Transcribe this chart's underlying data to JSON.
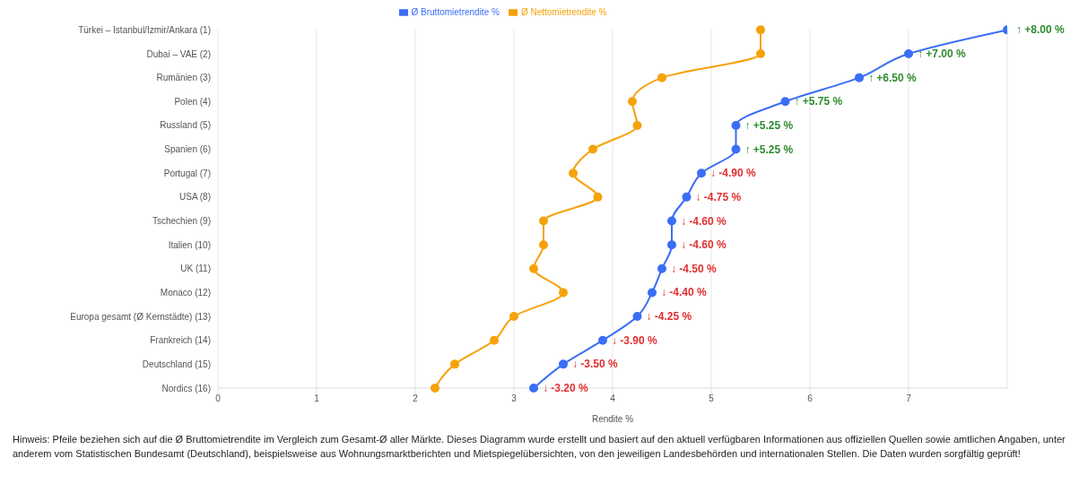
{
  "chart_data": {
    "type": "line",
    "orientation": "horizontal",
    "xlabel": "Rendite %",
    "categories": [
      "Türkei – Istanbul/Izmir/Ankara (1)",
      "Dubai – VAE (2)",
      "Rumänien (3)",
      "Polen (4)",
      "Russland (5)",
      "Spanien (6)",
      "Portugal (7)",
      "USA (8)",
      "Tschechien (9)",
      "Italien (10)",
      "UK (11)",
      "Monaco (12)",
      "Europa gesamt (Ø Kernstädte) (13)",
      "Frankreich (14)",
      "Deutschland (15)",
      "Nordics (16)"
    ],
    "series": [
      {
        "name": "Ø Bruttomietrendite %",
        "color": "#3b6ef6",
        "values": [
          8,
          7,
          6.5,
          5.75,
          5.25,
          5.25,
          4.9,
          4.75,
          4.6,
          4.6,
          4.5,
          4.4,
          4.25,
          3.9,
          3.5,
          3.2
        ]
      },
      {
        "name": "Ø Nettomietrendite %",
        "color": "#f5a20a",
        "values": [
          5.5,
          5.5,
          4.5,
          4.2,
          4.25,
          3.8,
          3.6,
          3.85,
          3.3,
          3.3,
          3.2,
          3.5,
          3.0,
          2.8,
          2.4,
          2.2
        ]
      }
    ],
    "xlim": [
      0,
      8
    ],
    "xticks": [
      0,
      1,
      2,
      3,
      4,
      5,
      6,
      7
    ],
    "grid": "x",
    "legend": "top",
    "marker": "circle",
    "line_style": "solid",
    "annotations": [
      {
        "text": "↑ +8.00 %",
        "x": 8,
        "y": "Türkei – Istanbul/Izmir/Ankara (1)"
      },
      {
        "text": "↑ +7.00 %",
        "x": 7,
        "y": "Dubai – VAE (2)"
      },
      {
        "text": "↑ +6.50 %",
        "x": 6.5,
        "y": "Rumänien (3)"
      },
      {
        "text": "↑ +5.75 %",
        "x": 5.75,
        "y": "Polen (4)"
      },
      {
        "text": "↑ +5.25 %",
        "x": 5.25,
        "y": "Russland (5)"
      },
      {
        "text": "↑ +5.25 %",
        "x": 5.25,
        "y": "Spanien (6)"
      },
      {
        "text": "↓ -4.90 %",
        "x": 4.9,
        "y": "Portugal (7)"
      },
      {
        "text": "↓ -4.75 %",
        "x": 4.75,
        "y": "USA (8)"
      },
      {
        "text": "↓ -4.60 %",
        "x": 4.6,
        "y": "Tschechien (9)"
      },
      {
        "text": "↓ -4.60 %",
        "x": 4.6,
        "y": "Italien (10)"
      },
      {
        "text": "↓ -4.50 %",
        "x": 4.5,
        "y": "UK (11)"
      },
      {
        "text": "↓ -4.40 %",
        "x": 4.4,
        "y": "Monaco (12)"
      },
      {
        "text": "↓ -4.25 %",
        "x": 4.25,
        "y": "Europa gesamt (Ø Kernstädte) (13)"
      },
      {
        "text": "↓ -3.90 %",
        "x": 3.9,
        "y": "Frankreich (14)"
      },
      {
        "text": "↓ -3.50 %",
        "x": 3.5,
        "y": "Deutschland (15)"
      },
      {
        "text": "↓ -3.20 %",
        "x": 3.2,
        "y": "Nordics (16)"
      },
      "Hinweis: Pfeile beziehen sich auf die Ø Bruttomietrendite im Vergleich zum Gesamt-Ø aller Märkte. Dieses Diagramm wurde erstellt und basiert auf den aktuell verfügbaren Informationen aus offiziellen Quellen sowie amtlichen Angaben, unter anderem vom Statistischen Bundesamt (Deutschland), beispielsweise aus Wohnungsmarktberichten und Mietspiegelübersichten, von den jeweiligen Landesbehörden und internationalen Stellen. Die Daten wurden sorgfältig geprüft!"
    ]
  }
}
